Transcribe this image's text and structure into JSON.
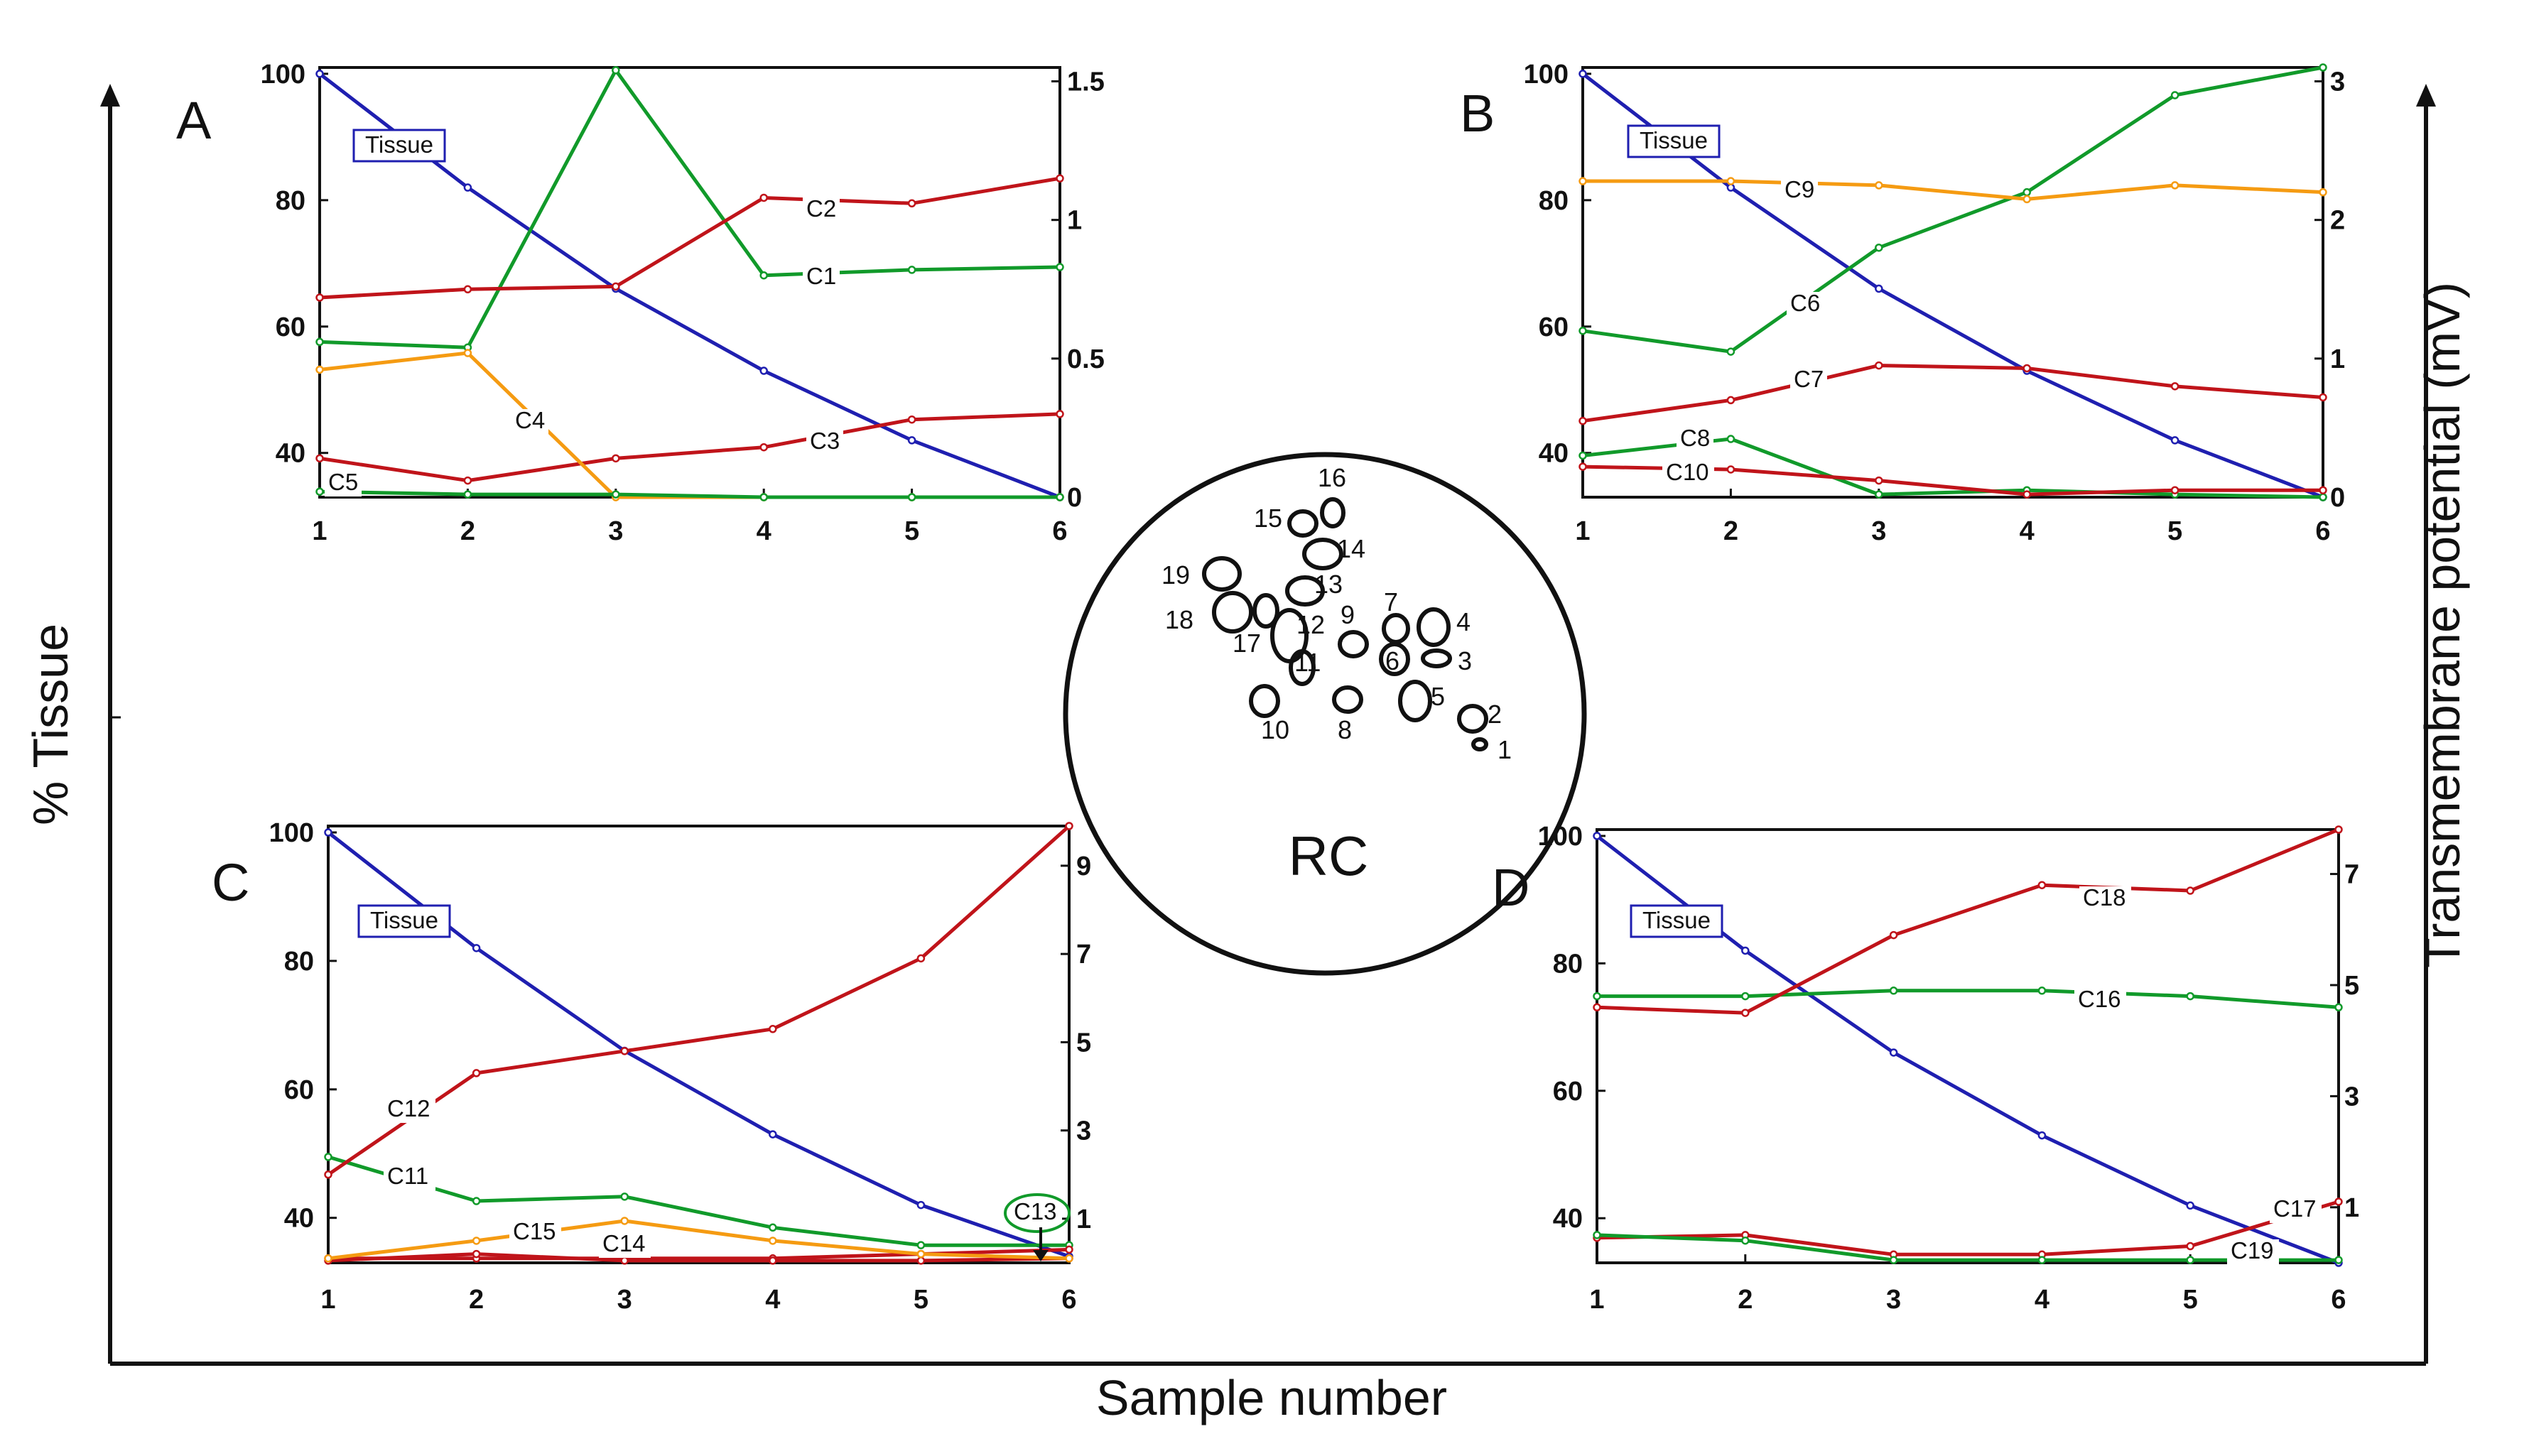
{
  "figure": {
    "x_axis_title": "Sample number",
    "y_left_title": "% Tissue",
    "y_right_title": "Transmembrane potential (mV)",
    "center_label": "RC",
    "numbers": [
      "1",
      "2",
      "3",
      "4",
      "5",
      "6",
      "7",
      "8",
      "9",
      "10",
      "11",
      "12",
      "13",
      "14",
      "15",
      "16",
      "17",
      "18",
      "19"
    ],
    "colors": {
      "blue": "#1f1fb0",
      "red": "#c0141a",
      "green": "#119a2a",
      "orange": "#f59b12"
    }
  },
  "chart_data": [
    {
      "type": "line",
      "panel": "A",
      "legend_box": "Tissue",
      "x": [
        1,
        2,
        3,
        4,
        5,
        6
      ],
      "x_ticks": [
        "1",
        "2",
        "3",
        "4",
        "5",
        "6"
      ],
      "ylim_left": [
        33,
        101
      ],
      "left_ticks": [
        "100",
        "80",
        "60",
        "40"
      ],
      "ylim_right": [
        0,
        1.55
      ],
      "right_ticks": [
        "1.5",
        "1",
        "0.5",
        "0"
      ],
      "series": [
        {
          "name": "Tissue",
          "axis": "left",
          "color": "blue",
          "values": [
            100,
            82,
            66,
            53,
            42,
            33
          ]
        },
        {
          "name": "C1",
          "axis": "right",
          "color": "green",
          "values": [
            0.56,
            0.54,
            1.54,
            0.8,
            0.82,
            0.83
          ]
        },
        {
          "name": "C2",
          "axis": "right",
          "color": "red",
          "values": [
            0.72,
            0.75,
            0.76,
            1.08,
            1.06,
            1.15
          ]
        },
        {
          "name": "C3",
          "axis": "right",
          "color": "red",
          "values": [
            0.14,
            0.06,
            0.14,
            0.18,
            0.28,
            0.3
          ]
        },
        {
          "name": "C4",
          "axis": "right",
          "color": "orange",
          "values": [
            0.46,
            0.52,
            0.0,
            0.0,
            0.0,
            0.0
          ]
        },
        {
          "name": "C5",
          "axis": "right",
          "color": "green",
          "values": [
            0.02,
            0.01,
            0.01,
            0.0,
            0.0,
            0.0
          ]
        }
      ]
    },
    {
      "type": "line",
      "panel": "B",
      "legend_box": "Tissue",
      "x": [
        1,
        2,
        3,
        4,
        5,
        6
      ],
      "x_ticks": [
        "1",
        "2",
        "3",
        "4",
        "5",
        "6"
      ],
      "ylim_left": [
        33,
        101
      ],
      "left_ticks": [
        "100",
        "80",
        "60",
        "40"
      ],
      "ylim_right": [
        0,
        3.1
      ],
      "right_ticks": [
        "3",
        "2",
        "1",
        "0"
      ],
      "series": [
        {
          "name": "Tissue",
          "axis": "left",
          "color": "blue",
          "values": [
            100,
            82,
            66,
            53,
            42,
            33
          ]
        },
        {
          "name": "C6",
          "axis": "right",
          "color": "green",
          "values": [
            1.2,
            1.05,
            1.8,
            2.2,
            2.9,
            3.1
          ]
        },
        {
          "name": "C7",
          "axis": "right",
          "color": "red",
          "values": [
            0.55,
            0.7,
            0.95,
            0.93,
            0.8,
            0.72
          ]
        },
        {
          "name": "C8",
          "axis": "right",
          "color": "green",
          "values": [
            0.3,
            0.42,
            0.02,
            0.05,
            0.02,
            0.0
          ]
        },
        {
          "name": "C9",
          "axis": "right",
          "color": "orange",
          "values": [
            2.28,
            2.28,
            2.25,
            2.15,
            2.25,
            2.2
          ]
        },
        {
          "name": "C10",
          "axis": "right",
          "color": "red",
          "values": [
            0.22,
            0.2,
            0.12,
            0.02,
            0.05,
            0.05
          ]
        }
      ]
    },
    {
      "type": "line",
      "panel": "C",
      "legend_box": "Tissue",
      "x": [
        1,
        2,
        3,
        4,
        5,
        6
      ],
      "x_ticks": [
        "1",
        "2",
        "3",
        "4",
        "5",
        "6"
      ],
      "ylim_left": [
        33,
        101
      ],
      "left_ticks": [
        "100",
        "80",
        "60",
        "40"
      ],
      "ylim_right": [
        0,
        9.9
      ],
      "right_ticks": [
        "9",
        "7",
        "5",
        "3",
        "1"
      ],
      "series": [
        {
          "name": "Tissue",
          "axis": "left",
          "color": "blue",
          "values": [
            100,
            82,
            66,
            53,
            42,
            34
          ]
        },
        {
          "name": "C11",
          "axis": "right",
          "color": "green",
          "values": [
            2.4,
            1.4,
            1.5,
            0.8,
            0.4,
            0.4
          ]
        },
        {
          "name": "C12",
          "axis": "right",
          "color": "red",
          "values": [
            2.0,
            4.3,
            4.8,
            5.3,
            6.9,
            9.9
          ]
        },
        {
          "name": "C13",
          "axis": "right",
          "color": "red",
          "values": [
            0.1,
            0.1,
            0.1,
            0.1,
            0.2,
            0.3
          ]
        },
        {
          "name": "C14",
          "axis": "right",
          "color": "red",
          "values": [
            0.05,
            0.2,
            0.05,
            0.05,
            0.05,
            0.1
          ]
        },
        {
          "name": "C15",
          "axis": "right",
          "color": "orange",
          "values": [
            0.1,
            0.5,
            0.95,
            0.5,
            0.2,
            0.1
          ]
        }
      ]
    },
    {
      "type": "line",
      "panel": "D",
      "legend_box": "Tissue",
      "x": [
        1,
        2,
        3,
        4,
        5,
        6
      ],
      "x_ticks": [
        "1",
        "2",
        "3",
        "4",
        "5",
        "6"
      ],
      "ylim_left": [
        33,
        101
      ],
      "left_ticks": [
        "100",
        "80",
        "60",
        "40"
      ],
      "ylim_right": [
        0,
        7.8
      ],
      "right_ticks": [
        "7",
        "5",
        "3",
        "1"
      ],
      "series": [
        {
          "name": "Tissue",
          "axis": "left",
          "color": "blue",
          "values": [
            100,
            82,
            66,
            53,
            42,
            33
          ]
        },
        {
          "name": "C16",
          "axis": "right",
          "color": "green",
          "values": [
            4.8,
            4.8,
            4.9,
            4.9,
            4.8,
            4.6
          ]
        },
        {
          "name": "C17",
          "axis": "right",
          "color": "red",
          "values": [
            0.45,
            0.5,
            0.15,
            0.15,
            0.3,
            1.1
          ]
        },
        {
          "name": "C18",
          "axis": "right",
          "color": "red",
          "values": [
            4.6,
            4.5,
            5.9,
            6.8,
            6.7,
            7.8
          ]
        },
        {
          "name": "C19",
          "axis": "right",
          "color": "green",
          "values": [
            0.5,
            0.4,
            0.05,
            0.05,
            0.05,
            0.05
          ]
        }
      ]
    }
  ]
}
